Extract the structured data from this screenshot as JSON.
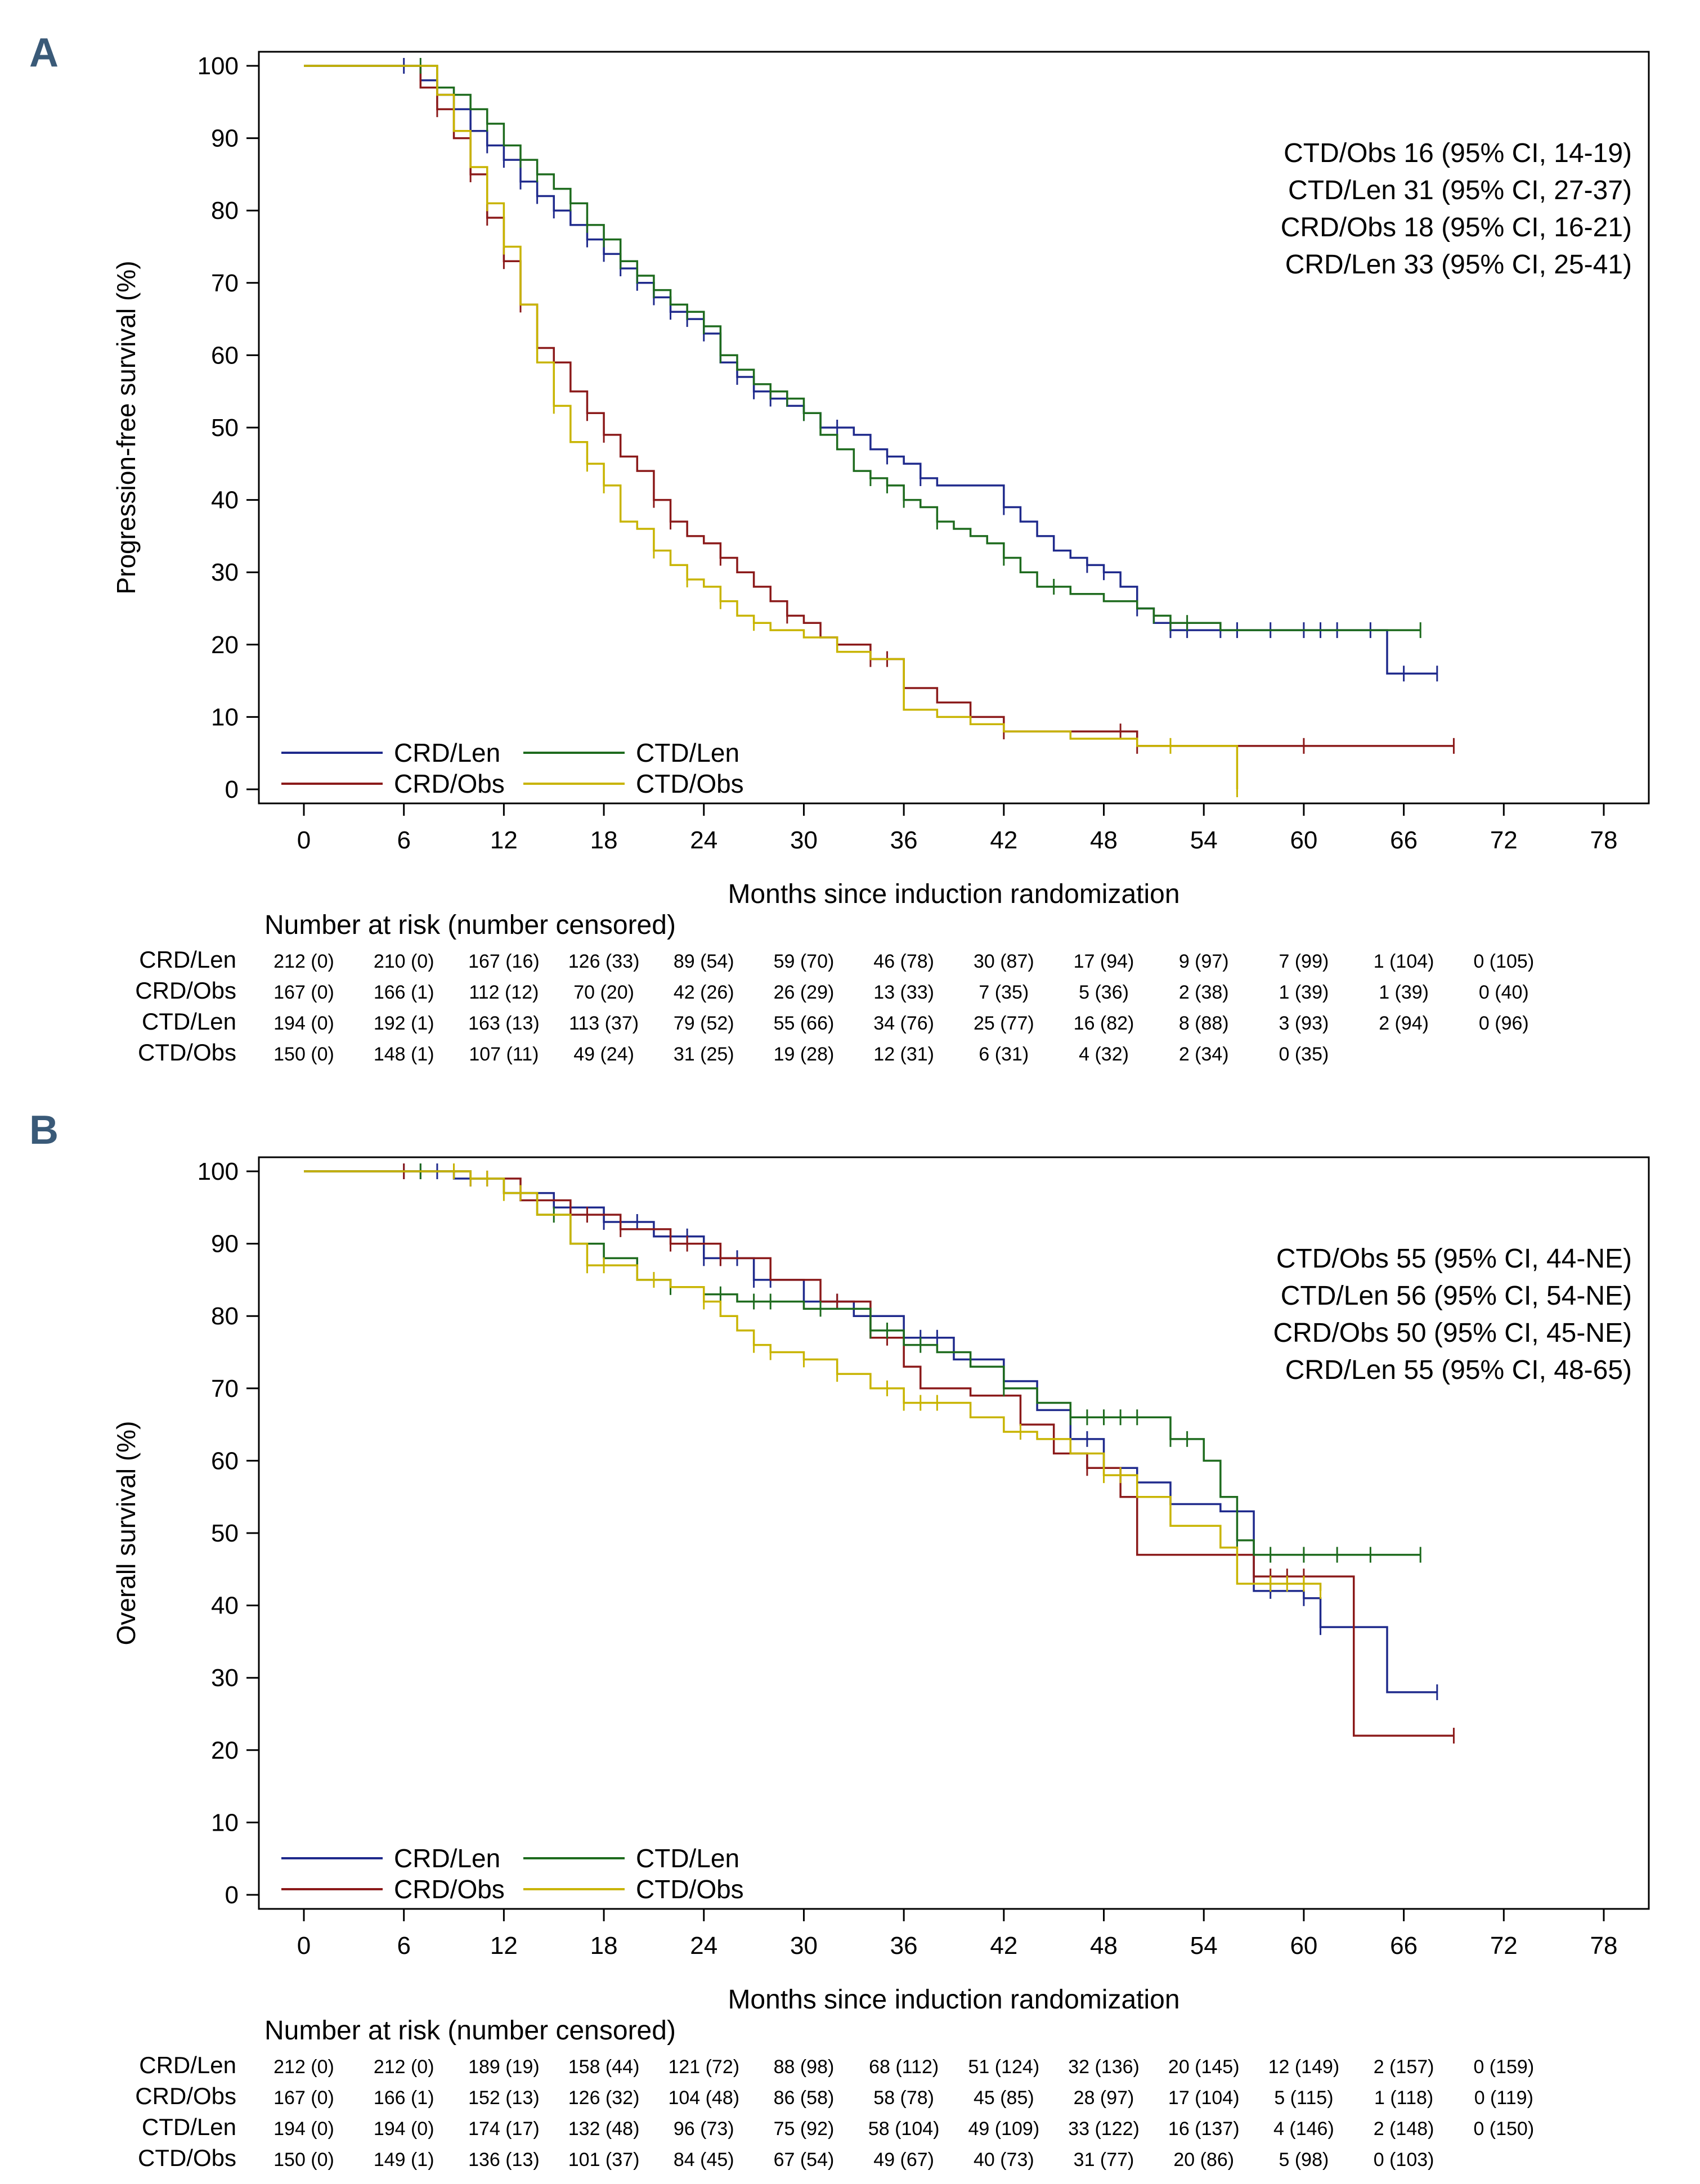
{
  "colors": {
    "CRD/Len": "#1f2a8c",
    "CRD/Obs": "#8b1a1a",
    "CTD/Len": "#1e6b1e",
    "CTD/Obs": "#c8b400",
    "axis": "#000000",
    "panel_letter": "#3a5a78"
  },
  "chart_data": [
    {
      "panel": "A",
      "type": "line",
      "subtype": "kaplan-meier",
      "title": "",
      "xlabel": "Months since induction randomization",
      "ylabel": "Progression-free survival (%)",
      "xlim": [
        0,
        78
      ],
      "ylim": [
        0,
        100
      ],
      "xticks": [
        0,
        6,
        12,
        18,
        24,
        30,
        36,
        42,
        48,
        54,
        60,
        66,
        72,
        78
      ],
      "yticks": [
        0,
        10,
        20,
        30,
        40,
        50,
        60,
        70,
        80,
        90,
        100
      ],
      "annotations": [
        "CTD/Obs 16 (95% CI, 14-19)",
        "CTD/Len 31 (95% CI, 27-37)",
        "CRD/Obs 18 (95% CI, 16-21)",
        "CRD/Len 33 (95% CI, 25-41)"
      ],
      "legend": {
        "placement": "bottom-left",
        "entries": [
          "CRD/Len",
          "CTD/Len",
          "CRD/Obs",
          "CTD/Obs"
        ]
      },
      "series": [
        {
          "name": "CRD/Len",
          "x": [
            0,
            6,
            7,
            8,
            9,
            10,
            11,
            12,
            13,
            14,
            15,
            16,
            17,
            18,
            19,
            20,
            21,
            22,
            23,
            24,
            25,
            26,
            27,
            28,
            29,
            30,
            31,
            32,
            33,
            34,
            35,
            36,
            37,
            38,
            40,
            42,
            43,
            44,
            45,
            46,
            47,
            48,
            49,
            50,
            51,
            52,
            53,
            55,
            60,
            64,
            65,
            68
          ],
          "y": [
            100,
            100,
            98,
            96,
            94,
            91,
            89,
            87,
            84,
            82,
            80,
            78,
            76,
            74,
            72,
            70,
            68,
            66,
            65,
            63,
            59,
            57,
            55,
            54,
            53,
            52,
            50,
            50,
            49,
            47,
            46,
            45,
            43,
            42,
            42,
            39,
            37,
            35,
            33,
            32,
            31,
            30,
            28,
            25,
            23,
            22,
            22,
            22,
            22,
            22,
            16,
            16
          ],
          "censor": [
            6,
            8,
            9,
            10,
            11,
            12,
            13,
            14,
            15,
            17,
            18,
            19,
            20,
            21,
            22,
            23,
            24,
            26,
            27,
            28,
            30,
            32,
            35,
            37,
            42,
            47,
            48,
            50,
            52,
            53,
            55,
            56,
            58,
            60,
            61,
            62,
            64,
            66,
            68
          ]
        },
        {
          "name": "CRD/Obs",
          "x": [
            0,
            6,
            7,
            8,
            9,
            10,
            11,
            12,
            13,
            14,
            15,
            16,
            17,
            18,
            19,
            20,
            21,
            22,
            23,
            24,
            25,
            26,
            27,
            28,
            29,
            30,
            31,
            32,
            34,
            36,
            38,
            40,
            42,
            45,
            48,
            50,
            55,
            60,
            69
          ],
          "y": [
            100,
            100,
            97,
            94,
            90,
            85,
            79,
            73,
            67,
            61,
            59,
            55,
            52,
            49,
            46,
            44,
            40,
            37,
            35,
            34,
            32,
            30,
            28,
            26,
            24,
            23,
            21,
            20,
            18,
            14,
            12,
            10,
            8,
            8,
            8,
            6,
            6,
            6,
            6
          ],
          "censor": [
            8,
            10,
            11,
            12,
            13,
            17,
            18,
            21,
            22,
            25,
            29,
            34,
            35,
            42,
            49,
            50,
            60,
            69
          ]
        },
        {
          "name": "CTD/Len",
          "x": [
            0,
            6,
            8,
            9,
            10,
            11,
            12,
            13,
            14,
            15,
            16,
            17,
            18,
            19,
            20,
            21,
            22,
            23,
            24,
            25,
            26,
            27,
            28,
            29,
            30,
            31,
            32,
            33,
            34,
            35,
            36,
            37,
            38,
            39,
            40,
            41,
            42,
            43,
            44,
            46,
            48,
            50,
            51,
            52,
            55,
            60,
            67
          ],
          "y": [
            100,
            100,
            97,
            96,
            94,
            92,
            89,
            87,
            85,
            83,
            81,
            78,
            76,
            73,
            71,
            69,
            67,
            66,
            64,
            60,
            58,
            56,
            55,
            54,
            52,
            49,
            47,
            44,
            43,
            42,
            40,
            39,
            37,
            36,
            35,
            34,
            32,
            30,
            28,
            27,
            26,
            25,
            24,
            23,
            22,
            22,
            22
          ],
          "censor": [
            7,
            9,
            11,
            13,
            14,
            16,
            17,
            18,
            19,
            20,
            21,
            23,
            24,
            25,
            28,
            29,
            30,
            34,
            35,
            36,
            38,
            42,
            45,
            51,
            52,
            53,
            67
          ]
        },
        {
          "name": "CTD/Obs",
          "x": [
            0,
            6,
            8,
            9,
            10,
            11,
            12,
            13,
            14,
            15,
            16,
            17,
            18,
            19,
            20,
            21,
            22,
            23,
            24,
            25,
            26,
            27,
            28,
            30,
            32,
            34,
            36,
            38,
            40,
            42,
            46,
            50,
            56
          ],
          "y": [
            100,
            100,
            96,
            91,
            86,
            81,
            75,
            67,
            59,
            53,
            48,
            45,
            42,
            37,
            36,
            33,
            31,
            29,
            28,
            26,
            24,
            23,
            22,
            21,
            19,
            18,
            11,
            10,
            9,
            8,
            7,
            6,
            0
          ],
          "censor": [
            11,
            12,
            15,
            17,
            18,
            21,
            23,
            25,
            27,
            52,
            56
          ]
        }
      ],
      "risk_table": {
        "title": "Number at risk (number censored)",
        "rows": [
          {
            "name": "CRD/Len",
            "values": [
              "212 (0)",
              "210 (0)",
              "167 (16)",
              "126 (33)",
              "89 (54)",
              "59 (70)",
              "46 (78)",
              "30 (87)",
              "17 (94)",
              "9 (97)",
              "7 (99)",
              "1 (104)",
              "0 (105)"
            ]
          },
          {
            "name": "CRD/Obs",
            "values": [
              "167 (0)",
              "166 (1)",
              "112 (12)",
              "70 (20)",
              "42 (26)",
              "26 (29)",
              "13 (33)",
              "7 (35)",
              "5 (36)",
              "2 (38)",
              "1 (39)",
              "1 (39)",
              "0 (40)"
            ]
          },
          {
            "name": "CTD/Len",
            "values": [
              "194 (0)",
              "192 (1)",
              "163 (13)",
              "113 (37)",
              "79 (52)",
              "55 (66)",
              "34 (76)",
              "25 (77)",
              "16 (82)",
              "8 (88)",
              "3 (93)",
              "2 (94)",
              "0 (96)"
            ]
          },
          {
            "name": "CTD/Obs",
            "values": [
              "150 (0)",
              "148 (1)",
              "107 (11)",
              "49 (24)",
              "31 (25)",
              "19 (28)",
              "12 (31)",
              "6 (31)",
              "4 (32)",
              "2 (34)",
              "0 (35)"
            ]
          }
        ]
      }
    },
    {
      "panel": "B",
      "type": "line",
      "subtype": "kaplan-meier",
      "title": "",
      "xlabel": "Months since induction randomization",
      "ylabel": "Overall survival (%)",
      "xlim": [
        0,
        78
      ],
      "ylim": [
        0,
        100
      ],
      "xticks": [
        0,
        6,
        12,
        18,
        24,
        30,
        36,
        42,
        48,
        54,
        60,
        66,
        72,
        78
      ],
      "yticks": [
        0,
        10,
        20,
        30,
        40,
        50,
        60,
        70,
        80,
        90,
        100
      ],
      "annotations": [
        "CTD/Obs 55 (95% CI, 44-NE)",
        "CTD/Len 56 (95% CI, 54-NE)",
        "CRD/Obs 50 (95% CI, 45-NE)",
        "CRD/Len 55 (95% CI, 48-65)"
      ],
      "legend": {
        "placement": "bottom-left",
        "entries": [
          "CRD/Len",
          "CTD/Len",
          "CRD/Obs",
          "CTD/Obs"
        ]
      },
      "series": [
        {
          "name": "CRD/Len",
          "x": [
            0,
            6,
            9,
            12,
            15,
            18,
            21,
            24,
            27,
            30,
            33,
            36,
            39,
            42,
            44,
            46,
            48,
            50,
            52,
            55,
            57,
            60,
            61,
            65,
            68
          ],
          "y": [
            100,
            100,
            99,
            97,
            95,
            93,
            91,
            88,
            85,
            82,
            80,
            77,
            74,
            71,
            67,
            63,
            59,
            57,
            54,
            53,
            42,
            41,
            37,
            28,
            28
          ],
          "censor": [
            6,
            7,
            8,
            10,
            16,
            18,
            20,
            22,
            23,
            24,
            25,
            26,
            27,
            28,
            30,
            32,
            34,
            36,
            37,
            38,
            40,
            46,
            47,
            48,
            58,
            60,
            61,
            68
          ]
        },
        {
          "name": "CRD/Obs",
          "x": [
            0,
            6,
            10,
            13,
            16,
            19,
            22,
            25,
            28,
            31,
            34,
            36,
            37,
            40,
            43,
            45,
            47,
            49,
            50,
            55,
            57,
            63,
            69
          ],
          "y": [
            100,
            100,
            99,
            96,
            94,
            92,
            90,
            88,
            85,
            82,
            77,
            73,
            70,
            69,
            65,
            61,
            59,
            55,
            47,
            47,
            44,
            22,
            22
          ],
          "censor": [
            6,
            9,
            10,
            11,
            16,
            17,
            19,
            22,
            23,
            25,
            32,
            35,
            47,
            48,
            57,
            58,
            59,
            60,
            69
          ]
        },
        {
          "name": "CTD/Len",
          "x": [
            0,
            6,
            10,
            12,
            14,
            16,
            18,
            20,
            22,
            24,
            26,
            30,
            34,
            36,
            38,
            40,
            42,
            44,
            46,
            48,
            52,
            54,
            55,
            56,
            57,
            67
          ],
          "y": [
            100,
            100,
            99,
            97,
            94,
            90,
            88,
            85,
            84,
            83,
            82,
            81,
            78,
            76,
            75,
            73,
            70,
            68,
            66,
            66,
            63,
            60,
            55,
            49,
            47,
            47
          ],
          "censor": [
            7,
            13,
            15,
            18,
            22,
            24,
            25,
            27,
            28,
            31,
            34,
            35,
            37,
            42,
            46,
            47,
            48,
            49,
            50,
            52,
            53,
            56,
            58,
            60,
            62,
            64,
            67
          ]
        },
        {
          "name": "CTD/Obs",
          "x": [
            0,
            6,
            10,
            12,
            14,
            16,
            17,
            20,
            22,
            24,
            25,
            26,
            27,
            28,
            30,
            32,
            34,
            36,
            40,
            42,
            44,
            46,
            48,
            50,
            52,
            55,
            56,
            61
          ],
          "y": [
            100,
            100,
            99,
            97,
            94,
            90,
            87,
            85,
            84,
            82,
            80,
            78,
            76,
            75,
            74,
            72,
            70,
            68,
            66,
            64,
            63,
            61,
            58,
            55,
            51,
            48,
            43,
            42
          ],
          "censor": [
            9,
            10,
            11,
            12,
            13,
            17,
            18,
            21,
            24,
            27,
            28,
            30,
            32,
            35,
            36,
            37,
            38,
            43,
            48,
            49,
            58,
            59,
            60,
            61
          ]
        }
      ],
      "risk_table": {
        "title": "Number at risk (number censored)",
        "rows": [
          {
            "name": "CRD/Len",
            "values": [
              "212 (0)",
              "212 (0)",
              "189 (19)",
              "158 (44)",
              "121 (72)",
              "88 (98)",
              "68 (112)",
              "51 (124)",
              "32 (136)",
              "20 (145)",
              "12 (149)",
              "2 (157)",
              "0 (159)"
            ]
          },
          {
            "name": "CRD/Obs",
            "values": [
              "167 (0)",
              "166 (1)",
              "152 (13)",
              "126 (32)",
              "104 (48)",
              "86 (58)",
              "58 (78)",
              "45 (85)",
              "28 (97)",
              "17 (104)",
              "5 (115)",
              "1 (118)",
              "0 (119)"
            ]
          },
          {
            "name": "CTD/Len",
            "values": [
              "194 (0)",
              "194 (0)",
              "174 (17)",
              "132 (48)",
              "96 (73)",
              "75 (92)",
              "58 (104)",
              "49 (109)",
              "33 (122)",
              "16 (137)",
              "4 (146)",
              "2 (148)",
              "0 (150)"
            ]
          },
          {
            "name": "CTD/Obs",
            "values": [
              "150 (0)",
              "149 (1)",
              "136 (13)",
              "101 (37)",
              "84 (45)",
              "67 (54)",
              "49 (67)",
              "40 (73)",
              "31 (77)",
              "20 (86)",
              "5 (98)",
              "0 (103)"
            ]
          }
        ]
      }
    }
  ]
}
